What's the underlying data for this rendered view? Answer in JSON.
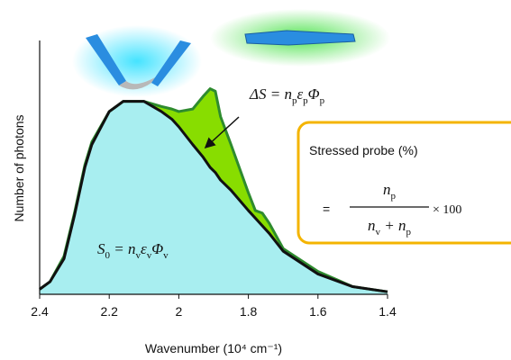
{
  "chart_data": {
    "type": "area",
    "x_label": "Wavenumber (10⁴ cm⁻¹)",
    "y_label": "Number of photons",
    "x": [
      2.4,
      2.37,
      2.33,
      2.3,
      2.27,
      2.25,
      2.2,
      2.16,
      2.1,
      2.05,
      2.02,
      2.0,
      1.96,
      1.93,
      1.91,
      1.895,
      1.88,
      1.85,
      1.8,
      1.78,
      1.76,
      1.74,
      1.7,
      1.6,
      1.5,
      1.4
    ],
    "series": [
      {
        "color": "#2e8b2e",
        "fill": "#88dd00",
        "values": [
          0.02,
          0.05,
          0.15,
          0.32,
          0.51,
          0.6,
          0.72,
          0.76,
          0.76,
          0.74,
          0.73,
          0.72,
          0.73,
          0.78,
          0.81,
          0.8,
          0.7,
          0.59,
          0.4,
          0.33,
          0.32,
          0.28,
          0.18,
          0.09,
          0.03,
          0.01
        ]
      },
      {
        "color": "#111111",
        "fill": "#a8eef0",
        "values": [
          0.02,
          0.05,
          0.14,
          0.31,
          0.5,
          0.59,
          0.72,
          0.76,
          0.76,
          0.72,
          0.69,
          0.66,
          0.59,
          0.54,
          0.5,
          0.48,
          0.45,
          0.41,
          0.33,
          0.3,
          0.27,
          0.24,
          0.17,
          0.08,
          0.03,
          0.01
        ]
      }
    ],
    "xlim": [
      2.4,
      1.4
    ],
    "xticks": [
      2.4,
      2.2,
      2,
      1.8,
      1.6,
      1.4
    ],
    "ylim": [
      0,
      1
    ],
    "yticks": [],
    "annotations": [
      {
        "parts": [
          "ΔS = n",
          "p",
          "ε",
          "p",
          "Φ",
          "p"
        ]
      },
      {
        "parts": [
          "S",
          "0",
          " = n",
          "v",
          "ε",
          "v",
          "Φ",
          "v"
        ]
      }
    ]
  },
  "box": {
    "title": "Stressed probe (%)",
    "equals": "=",
    "numerator": [
      "n",
      "p"
    ],
    "denominator": [
      "n",
      "v",
      " + n",
      "p"
    ],
    "multiplier": "× 100"
  }
}
